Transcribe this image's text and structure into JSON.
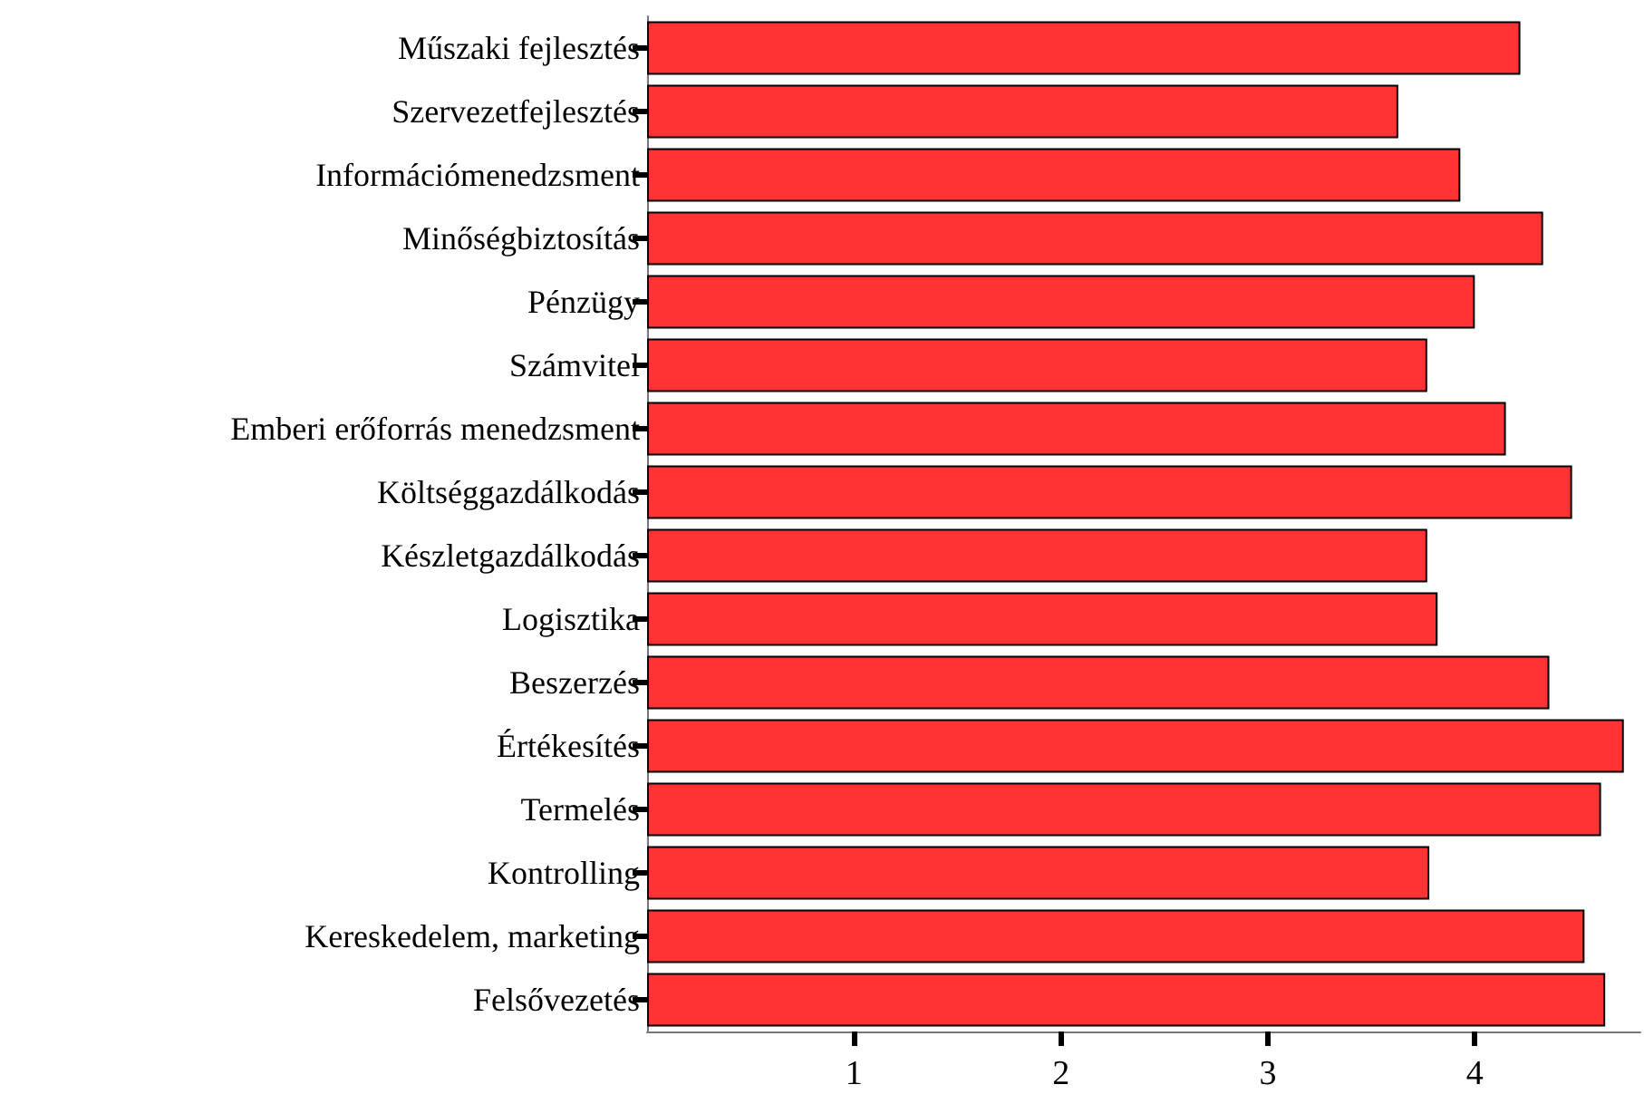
{
  "chart_data": {
    "type": "bar",
    "orientation": "horizontal",
    "categories": [
      "Műszaki fejlesztés",
      "Szervezetfejlesztés",
      "Információmenedzsment",
      "Minőségbiztosítás",
      "Pénzügy",
      "Számvitel",
      "Emberi erőforrás menedzsment",
      "Költséggazdálkodás",
      "Készletgazdálkodás",
      "Logisztika",
      "Beszerzés",
      "Értékesítés",
      "Termelés",
      "Kontrolling",
      "Kereskedelem, marketing",
      "Felsővezetés"
    ],
    "values": [
      4.22,
      3.63,
      3.93,
      4.33,
      4.0,
      3.77,
      4.15,
      4.47,
      3.77,
      3.82,
      4.36,
      4.72,
      4.61,
      3.78,
      4.53,
      4.63
    ],
    "color": "#ff3333",
    "xlim": [
      0,
      4.8
    ],
    "xticks": [
      1,
      2,
      3,
      4
    ],
    "grid": false
  }
}
